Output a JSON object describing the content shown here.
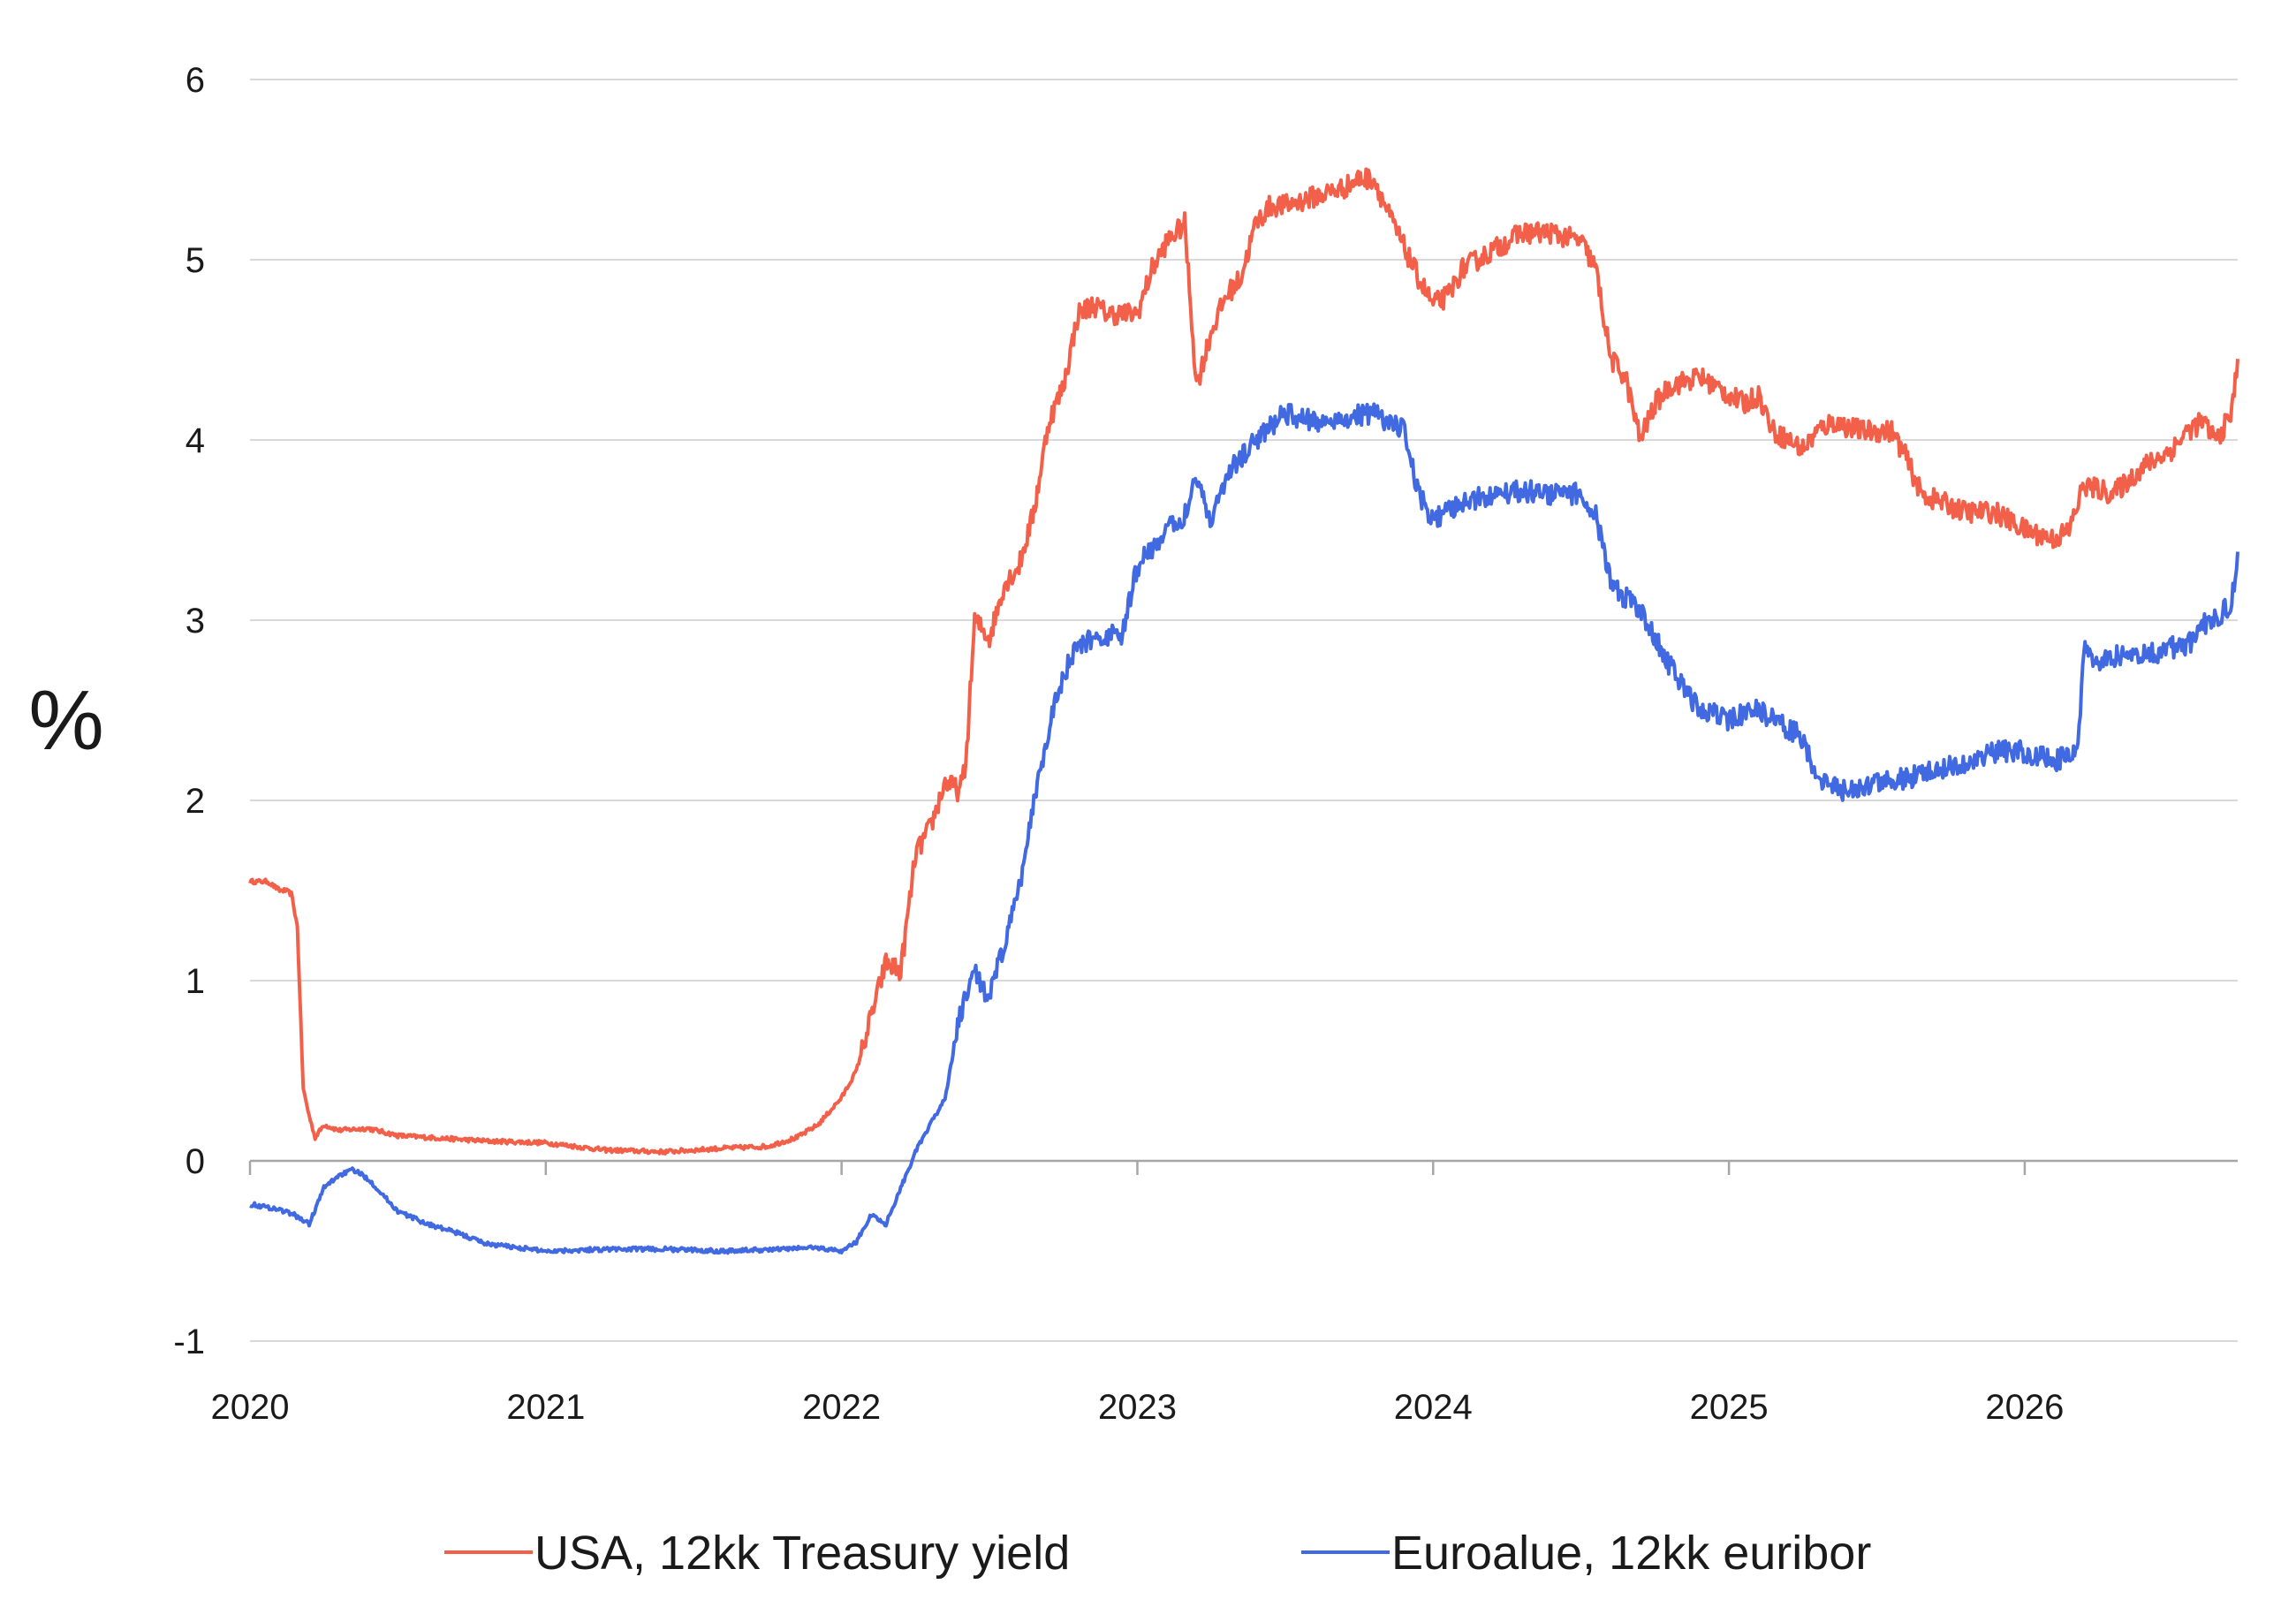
{
  "chart_data": {
    "type": "line",
    "title": "",
    "xlabel": "",
    "ylabel": "%",
    "xlim": [
      2020.0,
      2026.72
    ],
    "ylim": [
      -1,
      6
    ],
    "grid": true,
    "legend_position": "bottom",
    "x_ticks": [
      "2020",
      "2021",
      "2022",
      "2023",
      "2024",
      "2025",
      "2026"
    ],
    "y_ticks": [
      "-1",
      "0",
      "1",
      "2",
      "3",
      "4",
      "5",
      "6"
    ],
    "series": [
      {
        "name": "USA, 12kk Treasury yield",
        "color": "#f2604a",
        "x": [
          2020.0,
          2020.06,
          2020.1,
          2020.12,
          2020.14,
          2020.16,
          2020.18,
          2020.2,
          2020.22,
          2020.25,
          2020.3,
          2020.4,
          2020.5,
          2020.6,
          2020.8,
          2021.0,
          2021.2,
          2021.4,
          2021.6,
          2021.75,
          2021.85,
          2021.92,
          2022.0,
          2022.05,
          2022.1,
          2022.15,
          2022.2,
          2022.25,
          2022.3,
          2022.35,
          2022.4,
          2022.42,
          2022.45,
          2022.5,
          2022.55,
          2022.6,
          2022.65,
          2022.7,
          2022.75,
          2022.8,
          2022.85,
          2022.9,
          2023.0,
          2023.05,
          2023.1,
          2023.16,
          2023.2,
          2023.25,
          2023.3,
          2023.35,
          2023.4,
          2023.45,
          2023.5,
          2023.6,
          2023.7,
          2023.75,
          2023.8,
          2023.85,
          2023.95,
          2024.0,
          2024.05,
          2024.1,
          2024.2,
          2024.3,
          2024.4,
          2024.5,
          2024.55,
          2024.6,
          2024.65,
          2024.7,
          2024.75,
          2024.8,
          2024.9,
          2025.0,
          2025.05,
          2025.1,
          2025.15,
          2025.2,
          2025.25,
          2025.3,
          2025.35,
          2025.45,
          2025.55,
          2025.6,
          2025.65,
          2025.8,
          2025.9,
          2026.0,
          2026.1,
          2026.15,
          2026.2,
          2026.3,
          2026.4,
          2026.5,
          2026.55,
          2026.6,
          2026.65,
          2026.7,
          2026.72
        ],
        "values": [
          1.55,
          1.55,
          1.5,
          1.5,
          1.48,
          1.3,
          0.4,
          0.25,
          0.13,
          0.2,
          0.17,
          0.18,
          0.14,
          0.13,
          0.11,
          0.1,
          0.06,
          0.05,
          0.07,
          0.08,
          0.13,
          0.2,
          0.35,
          0.5,
          0.8,
          1.1,
          1.05,
          1.7,
          1.85,
          2.1,
          2.05,
          2.2,
          3.0,
          2.9,
          3.2,
          3.3,
          3.6,
          4.1,
          4.3,
          4.7,
          4.75,
          4.7,
          4.7,
          4.95,
          5.1,
          5.2,
          4.3,
          4.6,
          4.8,
          4.9,
          5.2,
          5.3,
          5.3,
          5.35,
          5.4,
          5.45,
          5.45,
          5.25,
          4.9,
          4.75,
          4.8,
          4.95,
          5.05,
          5.15,
          5.15,
          5.1,
          4.95,
          4.45,
          4.35,
          4.0,
          4.2,
          4.3,
          4.35,
          4.25,
          4.2,
          4.25,
          4.05,
          4.0,
          3.95,
          4.05,
          4.1,
          4.05,
          4.05,
          3.9,
          3.7,
          3.6,
          3.6,
          3.5,
          3.45,
          3.5,
          3.75,
          3.7,
          3.85,
          3.95,
          4.05,
          4.1,
          4.0,
          4.15,
          4.45
        ]
      },
      {
        "name": "Euroalue, 12kk euribor",
        "color": "#4169e1",
        "x": [
          2020.0,
          2020.1,
          2020.15,
          2020.2,
          2020.25,
          2020.3,
          2020.35,
          2020.4,
          2020.5,
          2020.6,
          2020.7,
          2020.8,
          2020.9,
          2021.0,
          2021.2,
          2021.4,
          2021.6,
          2021.8,
          2021.9,
          2022.0,
          2022.05,
          2022.1,
          2022.15,
          2022.2,
          2022.25,
          2022.3,
          2022.35,
          2022.4,
          2022.45,
          2022.5,
          2022.55,
          2022.6,
          2022.65,
          2022.7,
          2022.75,
          2022.8,
          2022.85,
          2022.95,
          2023.0,
          2023.1,
          2023.15,
          2023.2,
          2023.25,
          2023.3,
          2023.4,
          2023.5,
          2023.6,
          2023.7,
          2023.8,
          2023.9,
          2023.95,
          2024.0,
          2024.1,
          2024.2,
          2024.3,
          2024.4,
          2024.5,
          2024.55,
          2024.6,
          2024.7,
          2024.8,
          2024.9,
          2025.0,
          2025.1,
          2025.2,
          2025.25,
          2025.3,
          2025.4,
          2025.5,
          2025.6,
          2025.7,
          2025.8,
          2025.9,
          2026.0,
          2026.1,
          2026.15,
          2026.18,
          2026.2,
          2026.25,
          2026.3,
          2026.4,
          2026.5,
          2026.55,
          2026.6,
          2026.65,
          2026.7,
          2026.72
        ],
        "values": [
          -0.24,
          -0.27,
          -0.3,
          -0.35,
          -0.15,
          -0.08,
          -0.05,
          -0.1,
          -0.28,
          -0.35,
          -0.4,
          -0.46,
          -0.48,
          -0.5,
          -0.49,
          -0.49,
          -0.5,
          -0.49,
          -0.48,
          -0.5,
          -0.45,
          -0.3,
          -0.35,
          -0.15,
          0.05,
          0.2,
          0.35,
          0.8,
          1.05,
          0.9,
          1.2,
          1.5,
          2.0,
          2.4,
          2.7,
          2.85,
          2.9,
          2.92,
          3.3,
          3.5,
          3.55,
          3.8,
          3.55,
          3.8,
          4.0,
          4.15,
          4.1,
          4.12,
          4.15,
          4.05,
          3.7,
          3.55,
          3.65,
          3.7,
          3.72,
          3.7,
          3.7,
          3.6,
          3.2,
          3.05,
          2.75,
          2.5,
          2.45,
          2.5,
          2.4,
          2.35,
          2.1,
          2.05,
          2.1,
          2.12,
          2.18,
          2.2,
          2.27,
          2.27,
          2.22,
          2.25,
          2.3,
          2.85,
          2.75,
          2.8,
          2.8,
          2.85,
          2.85,
          2.98,
          3.0,
          3.1,
          3.38
        ]
      }
    ]
  }
}
